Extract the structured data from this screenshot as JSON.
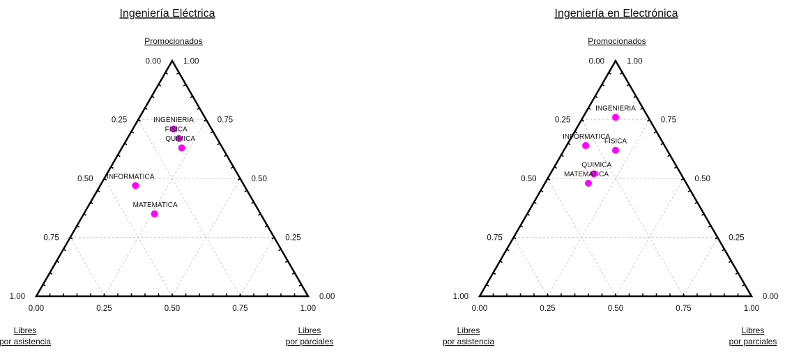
{
  "charts_common": {
    "top_label": "Promocionados",
    "bottom_left_label_1": "Libres",
    "bottom_left_label_2": "por asistencia",
    "bottom_right_label_1": "Libres",
    "bottom_right_label_2": "por parciales",
    "left_ticks": [
      "0.00",
      "0.25",
      "0.50",
      "0.75",
      "1.00"
    ],
    "right_ticks": [
      "1.00",
      "0.75",
      "0.50",
      "0.25",
      "0.00"
    ],
    "bottom_ticks": [
      "0.00",
      "0.25",
      "0.50",
      "0.75",
      "1.00"
    ],
    "point_color": "#ff00ff",
    "grid_color": "#c8c8c8"
  },
  "chart_data": [
    {
      "type": "scatter",
      "subtype": "ternary",
      "title": "Ingeniería Eléctrica",
      "components": [
        "Promocionados",
        "Libres por asistencia",
        "Libres por parciales"
      ],
      "points": [
        {
          "label": "INGENIERIA",
          "promocionados": 0.71,
          "libres_asistencia": 0.14,
          "libres_parciales": 0.15
        },
        {
          "label": "FISICA",
          "promocionados": 0.67,
          "libres_asistencia": 0.14,
          "libres_parciales": 0.19
        },
        {
          "label": "QUIMICA",
          "promocionados": 0.63,
          "libres_asistencia": 0.15,
          "libres_parciales": 0.22
        },
        {
          "label": "INFORMATICA",
          "promocionados": 0.47,
          "libres_asistencia": 0.4,
          "libres_parciales": 0.13
        },
        {
          "label": "MATEMATICA",
          "promocionados": 0.35,
          "libres_asistencia": 0.39,
          "libres_parciales": 0.26
        }
      ]
    },
    {
      "type": "scatter",
      "subtype": "ternary",
      "title": "Ingeniería en Electrónica",
      "components": [
        "Promocionados",
        "Libres por asistencia",
        "Libres por parciales"
      ],
      "points": [
        {
          "label": "INGENIERIA",
          "promocionados": 0.76,
          "libres_asistencia": 0.12,
          "libres_parciales": 0.12
        },
        {
          "label": "INFORMATICA",
          "promocionados": 0.64,
          "libres_asistencia": 0.29,
          "libres_parciales": 0.07
        },
        {
          "label": "FISICA",
          "promocionados": 0.62,
          "libres_asistencia": 0.19,
          "libres_parciales": 0.19
        },
        {
          "label": "QUIMICA",
          "promocionados": 0.52,
          "libres_asistencia": 0.32,
          "libres_parciales": 0.16
        },
        {
          "label": "MATEMATICA",
          "promocionados": 0.48,
          "libres_asistencia": 0.36,
          "libres_parciales": 0.16
        }
      ]
    }
  ]
}
